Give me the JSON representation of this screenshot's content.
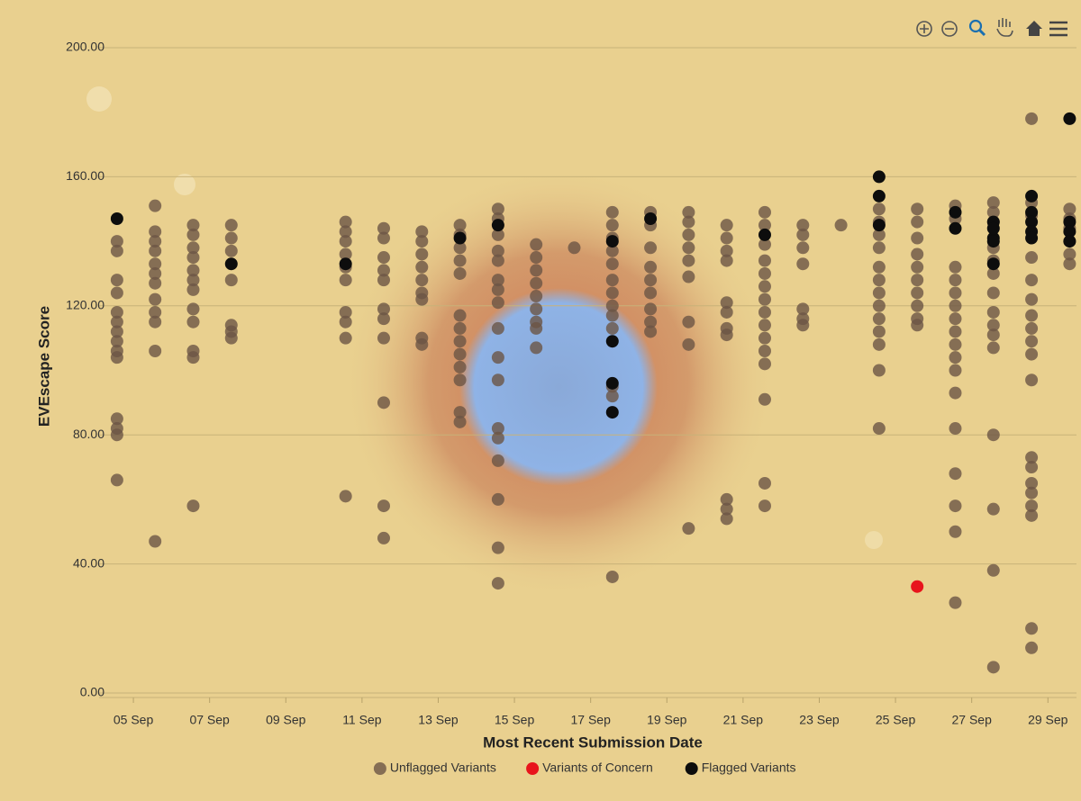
{
  "chart_data": {
    "type": "scatter",
    "xlabel": "Most Recent Submission Date",
    "ylabel": "EVEscape Score",
    "xlim": [
      4.1,
      29.75
    ],
    "ylim": [
      0,
      200
    ],
    "xticks": [
      {
        "value": 5,
        "label": "05 Sep"
      },
      {
        "value": 7,
        "label": "07 Sep"
      },
      {
        "value": 9,
        "label": "09 Sep"
      },
      {
        "value": 11,
        "label": "11 Sep"
      },
      {
        "value": 13,
        "label": "13 Sep"
      },
      {
        "value": 15,
        "label": "15 Sep"
      },
      {
        "value": 17,
        "label": "17 Sep"
      },
      {
        "value": 19,
        "label": "19 Sep"
      },
      {
        "value": 21,
        "label": "21 Sep"
      },
      {
        "value": 23,
        "label": "23 Sep"
      },
      {
        "value": 25,
        "label": "25 Sep"
      },
      {
        "value": 27,
        "label": "27 Sep"
      },
      {
        "value": 29,
        "label": "29 Sep"
      }
    ],
    "yticks": [
      {
        "value": 0,
        "label": "0.00"
      },
      {
        "value": 40,
        "label": "40.00"
      },
      {
        "value": 80,
        "label": "80.00"
      },
      {
        "value": 120,
        "label": "120.00"
      },
      {
        "value": 160,
        "label": "160.00"
      },
      {
        "value": 200,
        "label": "200.00"
      }
    ],
    "grid": true,
    "legend": "bottom",
    "series": [
      {
        "name": "Unflagged Variants",
        "color": "#6b5545",
        "x": [
          4.57,
          4.57,
          4.57,
          4.57,
          4.57,
          4.57,
          4.57,
          4.57,
          4.57,
          4.57,
          4.57,
          4.57,
          4.57,
          4.57,
          5.57,
          5.57,
          5.57,
          5.57,
          5.57,
          5.57,
          5.57,
          5.57,
          5.57,
          5.57,
          5.57,
          5.57,
          6.57,
          6.57,
          6.57,
          6.57,
          6.57,
          6.57,
          6.57,
          6.57,
          6.57,
          6.57,
          6.57,
          6.57,
          7.57,
          7.57,
          7.57,
          7.57,
          7.57,
          7.57,
          7.57,
          10.57,
          10.57,
          10.57,
          10.57,
          10.57,
          10.57,
          10.57,
          10.57,
          10.57,
          10.57,
          11.57,
          11.57,
          11.57,
          11.57,
          11.57,
          11.57,
          11.57,
          11.57,
          11.57,
          11.57,
          11.57,
          12.57,
          12.57,
          12.57,
          12.57,
          12.57,
          12.57,
          12.57,
          12.57,
          12.57,
          13.57,
          13.57,
          13.57,
          13.57,
          13.57,
          13.57,
          13.57,
          13.57,
          13.57,
          13.57,
          13.57,
          13.57,
          13.57,
          14.57,
          14.57,
          14.57,
          14.57,
          14.57,
          14.57,
          14.57,
          14.57,
          14.57,
          14.57,
          14.57,
          14.57,
          14.57,
          14.57,
          14.57,
          14.57,
          14.57,
          15.57,
          15.57,
          15.57,
          15.57,
          15.57,
          15.57,
          15.57,
          15.57,
          15.57,
          16.57,
          17.57,
          17.57,
          17.57,
          17.57,
          17.57,
          17.57,
          17.57,
          17.57,
          17.57,
          17.57,
          17.57,
          17.57,
          17.57,
          18.57,
          18.57,
          18.57,
          18.57,
          18.57,
          18.57,
          18.57,
          18.57,
          18.57,
          19.57,
          19.57,
          19.57,
          19.57,
          19.57,
          19.57,
          19.57,
          19.57,
          19.57,
          20.57,
          20.57,
          20.57,
          20.57,
          20.57,
          20.57,
          20.57,
          20.57,
          20.57,
          20.57,
          20.57,
          21.57,
          21.57,
          21.57,
          21.57,
          21.57,
          21.57,
          21.57,
          21.57,
          21.57,
          21.57,
          21.57,
          21.57,
          21.57,
          21.57,
          21.57,
          22.57,
          22.57,
          22.57,
          22.57,
          22.57,
          22.57,
          22.57,
          23.57,
          24.57,
          24.57,
          24.57,
          24.57,
          24.57,
          24.57,
          24.57,
          24.57,
          24.57,
          24.57,
          24.57,
          24.57,
          24.57,
          25.57,
          25.57,
          25.57,
          25.57,
          25.57,
          25.57,
          25.57,
          25.57,
          25.57,
          25.57,
          26.57,
          26.57,
          26.57,
          26.57,
          26.57,
          26.57,
          26.57,
          26.57,
          26.57,
          26.57,
          26.57,
          26.57,
          26.57,
          26.57,
          26.57,
          26.57,
          26.57,
          27.57,
          27.57,
          27.57,
          27.57,
          27.57,
          27.57,
          27.57,
          27.57,
          27.57,
          27.57,
          27.57,
          27.57,
          27.57,
          27.57,
          27.57,
          28.57,
          28.57,
          28.57,
          28.57,
          28.57,
          28.57,
          28.57,
          28.57,
          28.57,
          28.57,
          28.57,
          28.57,
          28.57,
          28.57,
          28.57,
          28.57,
          28.57,
          28.57,
          28.57,
          29.57,
          29.57,
          29.57,
          29.57,
          29.57,
          29.57
        ],
        "values": [
          140,
          137,
          128,
          124,
          118,
          115,
          112,
          109,
          106,
          104,
          85,
          82,
          80,
          66,
          151,
          143,
          140,
          137,
          133,
          130,
          127,
          122,
          118,
          115,
          106,
          47,
          145,
          142,
          138,
          135,
          131,
          128,
          125,
          119,
          115,
          106,
          104,
          58,
          145,
          141,
          137,
          128,
          114,
          112,
          110,
          146,
          143,
          140,
          136,
          132,
          128,
          118,
          115,
          110,
          61,
          144,
          141,
          135,
          131,
          128,
          119,
          116,
          110,
          90,
          58,
          48,
          143,
          140,
          136,
          132,
          128,
          124,
          122,
          110,
          108,
          145,
          142,
          138,
          134,
          130,
          117,
          113,
          109,
          105,
          101,
          97,
          87,
          84,
          150,
          147,
          142,
          137,
          134,
          128,
          125,
          121,
          113,
          104,
          97,
          82,
          79,
          72,
          60,
          45,
          34,
          139,
          135,
          131,
          127,
          123,
          119,
          115,
          113,
          107,
          138,
          149,
          145,
          141,
          137,
          133,
          128,
          124,
          120,
          117,
          113,
          95,
          92,
          36,
          149,
          145,
          138,
          132,
          128,
          124,
          119,
          115,
          112,
          149,
          146,
          142,
          138,
          134,
          129,
          115,
          108,
          51,
          145,
          141,
          137,
          134,
          121,
          118,
          113,
          111,
          60,
          57,
          54,
          149,
          145,
          139,
          134,
          130,
          126,
          122,
          118,
          114,
          110,
          106,
          102,
          91,
          65,
          58,
          145,
          142,
          138,
          133,
          119,
          116,
          114,
          145,
          150,
          146,
          142,
          138,
          132,
          128,
          124,
          120,
          116,
          112,
          108,
          100,
          82,
          150,
          146,
          141,
          136,
          132,
          128,
          124,
          120,
          116,
          114,
          151,
          147,
          132,
          128,
          124,
          120,
          116,
          112,
          108,
          104,
          100,
          93,
          82,
          68,
          58,
          50,
          28,
          152,
          149,
          146,
          138,
          134,
          130,
          124,
          118,
          114,
          111,
          107,
          80,
          57,
          38,
          8,
          178,
          152,
          148,
          135,
          128,
          122,
          117,
          113,
          109,
          105,
          97,
          73,
          70,
          65,
          62,
          58,
          55,
          20,
          14,
          150,
          147,
          144,
          140,
          136,
          133
        ]
      },
      {
        "name": "Variants of Concern",
        "color": "#e8141c",
        "x": [
          25.57
        ],
        "values": [
          33
        ]
      },
      {
        "name": "Flagged Variants",
        "color": "#0d0d0d",
        "x": [
          4.57,
          7.57,
          10.57,
          13.57,
          14.57,
          17.57,
          17.57,
          17.57,
          17.57,
          18.57,
          21.57,
          24.57,
          24.57,
          24.57,
          26.57,
          26.57,
          27.57,
          27.57,
          27.57,
          27.57,
          27.57,
          28.57,
          28.57,
          28.57,
          28.57,
          28.57,
          29.57,
          29.57,
          29.57,
          29.57
        ],
        "values": [
          147,
          133,
          133,
          141,
          145,
          140,
          109,
          96,
          87,
          147,
          142,
          160,
          154,
          145,
          149,
          144,
          146,
          141,
          133,
          144,
          140,
          154,
          149,
          146,
          143,
          141,
          178,
          146,
          143,
          140
        ]
      }
    ]
  }
}
